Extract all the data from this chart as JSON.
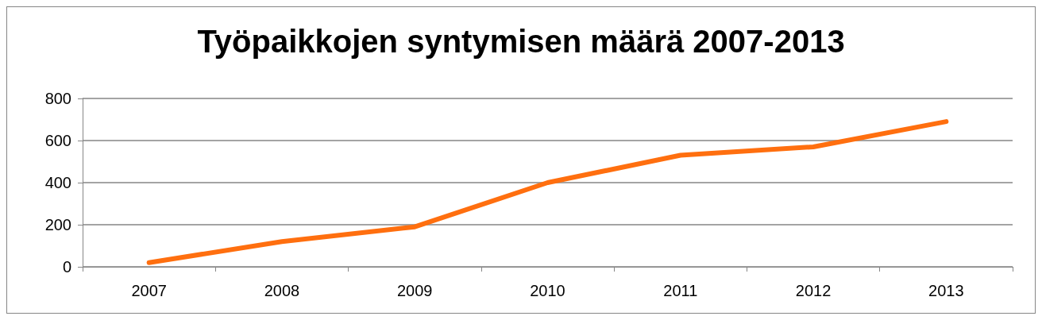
{
  "chart_data": {
    "type": "line",
    "title": "Työpaikkojen syntymisen määrä 2007-2013",
    "categories": [
      "2007",
      "2008",
      "2009",
      "2010",
      "2011",
      "2012",
      "2013"
    ],
    "series": [
      {
        "color": "#ff6f0f",
        "values": [
          20,
          120,
          190,
          400,
          530,
          570,
          690
        ]
      }
    ],
    "ylim": [
      0,
      800
    ],
    "yticks": [
      0,
      200,
      400,
      600,
      800
    ],
    "grid": "y",
    "marker": "none",
    "line_style": "solid"
  }
}
